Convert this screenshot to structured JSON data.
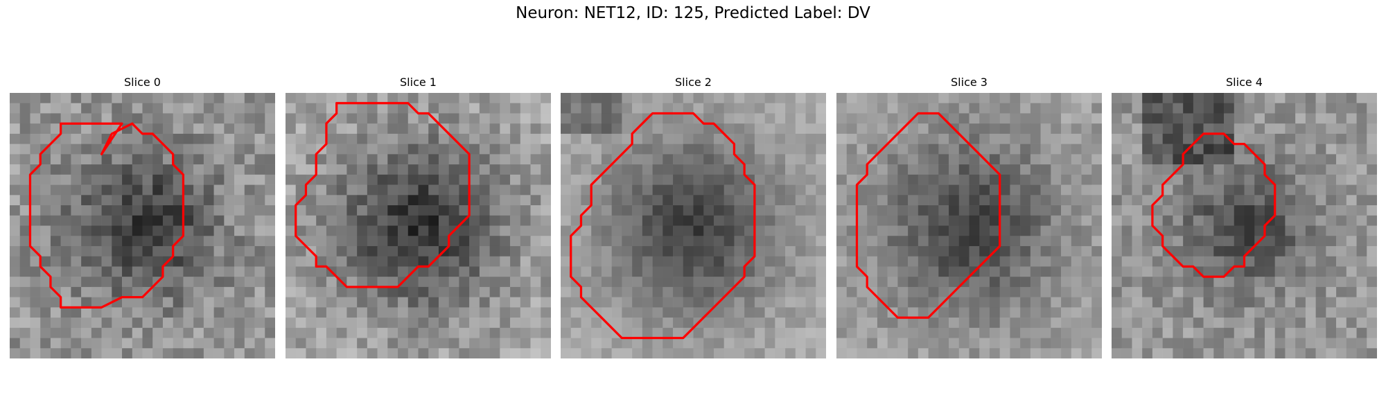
{
  "figure": {
    "title": "Neuron: NET12, ID: 125, Predicted Label: DV"
  },
  "panels": [
    {
      "title": "Slice 0",
      "contour_color": "#ff0000",
      "seed": 11,
      "base": 150,
      "blob": 95,
      "blob_r": 0.32,
      "noise": 70,
      "contour": [
        [
          9,
          6
        ],
        [
          10,
          4
        ],
        [
          12,
          3
        ],
        [
          13,
          4
        ],
        [
          14,
          4
        ],
        [
          15,
          5
        ],
        [
          16,
          6
        ],
        [
          16,
          7
        ],
        [
          17,
          8
        ],
        [
          17,
          9
        ],
        [
          17,
          10
        ],
        [
          17,
          11
        ],
        [
          17,
          12
        ],
        [
          17,
          13
        ],
        [
          17,
          14
        ],
        [
          16,
          15
        ],
        [
          16,
          16
        ],
        [
          15,
          17
        ],
        [
          15,
          18
        ],
        [
          14,
          19
        ],
        [
          13,
          20
        ],
        [
          12,
          20
        ],
        [
          11,
          20
        ],
        [
          9,
          21
        ],
        [
          8,
          21
        ],
        [
          7,
          21
        ],
        [
          6,
          21
        ],
        [
          5,
          21
        ],
        [
          5,
          20
        ],
        [
          4,
          19
        ],
        [
          4,
          18
        ],
        [
          3,
          17
        ],
        [
          3,
          16
        ],
        [
          2,
          15
        ],
        [
          2,
          14
        ],
        [
          2,
          13
        ],
        [
          2,
          12
        ],
        [
          2,
          11
        ],
        [
          2,
          10
        ],
        [
          2,
          9
        ],
        [
          2,
          8
        ],
        [
          3,
          7
        ],
        [
          3,
          6
        ],
        [
          4,
          5
        ],
        [
          5,
          4
        ],
        [
          5,
          3
        ],
        [
          6,
          3
        ],
        [
          7,
          3
        ],
        [
          8,
          3
        ],
        [
          9,
          3
        ],
        [
          11,
          3
        ]
      ]
    },
    {
      "title": "Slice 1",
      "contour_color": "#ff0000",
      "seed": 23,
      "base": 165,
      "blob": 110,
      "blob_r": 0.37,
      "noise": 65,
      "contour": [
        [
          5,
          1
        ],
        [
          6,
          1
        ],
        [
          7,
          1
        ],
        [
          8,
          1
        ],
        [
          9,
          1
        ],
        [
          10,
          1
        ],
        [
          11,
          1
        ],
        [
          12,
          1
        ],
        [
          13,
          2
        ],
        [
          14,
          2
        ],
        [
          15,
          3
        ],
        [
          16,
          4
        ],
        [
          17,
          5
        ],
        [
          18,
          6
        ],
        [
          18,
          7
        ],
        [
          18,
          8
        ],
        [
          18,
          9
        ],
        [
          18,
          10
        ],
        [
          18,
          11
        ],
        [
          18,
          12
        ],
        [
          17,
          13
        ],
        [
          16,
          14
        ],
        [
          16,
          15
        ],
        [
          15,
          16
        ],
        [
          14,
          17
        ],
        [
          13,
          17
        ],
        [
          12,
          18
        ],
        [
          11,
          19
        ],
        [
          10,
          19
        ],
        [
          9,
          19
        ],
        [
          8,
          19
        ],
        [
          7,
          19
        ],
        [
          6,
          19
        ],
        [
          5,
          18
        ],
        [
          4,
          17
        ],
        [
          3,
          17
        ],
        [
          3,
          16
        ],
        [
          2,
          15
        ],
        [
          1,
          14
        ],
        [
          1,
          13
        ],
        [
          1,
          12
        ],
        [
          1,
          11
        ],
        [
          2,
          10
        ],
        [
          2,
          9
        ],
        [
          3,
          8
        ],
        [
          3,
          7
        ],
        [
          3,
          6
        ],
        [
          4,
          5
        ],
        [
          4,
          4
        ],
        [
          4,
          3
        ],
        [
          5,
          2
        ]
      ]
    },
    {
      "title": "Slice 2",
      "contour_color": "#ff0000",
      "seed": 37,
      "base": 170,
      "blob": 105,
      "blob_r": 0.39,
      "noise": 40,
      "contour": [
        [
          9,
          2
        ],
        [
          10,
          2
        ],
        [
          11,
          2
        ],
        [
          12,
          2
        ],
        [
          13,
          2
        ],
        [
          14,
          3
        ],
        [
          15,
          3
        ],
        [
          16,
          4
        ],
        [
          17,
          5
        ],
        [
          17,
          6
        ],
        [
          18,
          7
        ],
        [
          18,
          8
        ],
        [
          19,
          9
        ],
        [
          19,
          10
        ],
        [
          19,
          11
        ],
        [
          19,
          12
        ],
        [
          19,
          13
        ],
        [
          19,
          14
        ],
        [
          19,
          15
        ],
        [
          19,
          16
        ],
        [
          18,
          17
        ],
        [
          18,
          18
        ],
        [
          17,
          19
        ],
        [
          16,
          20
        ],
        [
          15,
          21
        ],
        [
          14,
          22
        ],
        [
          13,
          23
        ],
        [
          12,
          24
        ],
        [
          11,
          24
        ],
        [
          10,
          24
        ],
        [
          9,
          24
        ],
        [
          8,
          24
        ],
        [
          7,
          24
        ],
        [
          6,
          24
        ],
        [
          5,
          23
        ],
        [
          4,
          22
        ],
        [
          3,
          21
        ],
        [
          2,
          20
        ],
        [
          2,
          19
        ],
        [
          1,
          18
        ],
        [
          1,
          17
        ],
        [
          1,
          16
        ],
        [
          1,
          15
        ],
        [
          1,
          14
        ],
        [
          2,
          13
        ],
        [
          2,
          12
        ],
        [
          3,
          11
        ],
        [
          3,
          10
        ],
        [
          3,
          9
        ],
        [
          4,
          8
        ],
        [
          5,
          7
        ],
        [
          6,
          6
        ],
        [
          7,
          5
        ],
        [
          7,
          4
        ],
        [
          8,
          3
        ]
      ]
    },
    {
      "title": "Slice 3",
      "contour_color": "#ff0000",
      "seed": 51,
      "base": 160,
      "blob": 90,
      "blob_r": 0.38,
      "noise": 50,
      "contour": [
        [
          8,
          2
        ],
        [
          9,
          2
        ],
        [
          10,
          2
        ],
        [
          11,
          3
        ],
        [
          12,
          4
        ],
        [
          13,
          5
        ],
        [
          14,
          6
        ],
        [
          15,
          7
        ],
        [
          16,
          8
        ],
        [
          16,
          9
        ],
        [
          16,
          10
        ],
        [
          16,
          11
        ],
        [
          16,
          12
        ],
        [
          16,
          13
        ],
        [
          16,
          14
        ],
        [
          16,
          15
        ],
        [
          15,
          16
        ],
        [
          14,
          17
        ],
        [
          13,
          18
        ],
        [
          12,
          19
        ],
        [
          11,
          20
        ],
        [
          10,
          21
        ],
        [
          9,
          22
        ],
        [
          8,
          22
        ],
        [
          7,
          22
        ],
        [
          6,
          22
        ],
        [
          5,
          21
        ],
        [
          4,
          20
        ],
        [
          3,
          19
        ],
        [
          3,
          18
        ],
        [
          2,
          17
        ],
        [
          2,
          16
        ],
        [
          2,
          15
        ],
        [
          2,
          14
        ],
        [
          2,
          13
        ],
        [
          2,
          12
        ],
        [
          2,
          11
        ],
        [
          2,
          10
        ],
        [
          2,
          9
        ],
        [
          3,
          8
        ],
        [
          3,
          7
        ],
        [
          4,
          6
        ],
        [
          5,
          5
        ],
        [
          6,
          4
        ],
        [
          7,
          3
        ]
      ]
    },
    {
      "title": "Slice 4",
      "contour_color": "#ff0000",
      "seed": 67,
      "base": 150,
      "blob": 75,
      "blob_r": 0.28,
      "noise": 60,
      "contour": [
        [
          9,
          4
        ],
        [
          10,
          4
        ],
        [
          11,
          4
        ],
        [
          12,
          5
        ],
        [
          13,
          5
        ],
        [
          14,
          6
        ],
        [
          15,
          7
        ],
        [
          15,
          8
        ],
        [
          16,
          9
        ],
        [
          16,
          10
        ],
        [
          16,
          11
        ],
        [
          16,
          12
        ],
        [
          15,
          13
        ],
        [
          15,
          14
        ],
        [
          14,
          15
        ],
        [
          13,
          16
        ],
        [
          13,
          17
        ],
        [
          12,
          17
        ],
        [
          11,
          18
        ],
        [
          10,
          18
        ],
        [
          9,
          18
        ],
        [
          8,
          17
        ],
        [
          7,
          17
        ],
        [
          6,
          16
        ],
        [
          5,
          15
        ],
        [
          5,
          14
        ],
        [
          4,
          13
        ],
        [
          4,
          12
        ],
        [
          4,
          11
        ],
        [
          5,
          10
        ],
        [
          5,
          9
        ],
        [
          6,
          8
        ],
        [
          7,
          7
        ],
        [
          7,
          6
        ],
        [
          8,
          5
        ]
      ]
    }
  ]
}
